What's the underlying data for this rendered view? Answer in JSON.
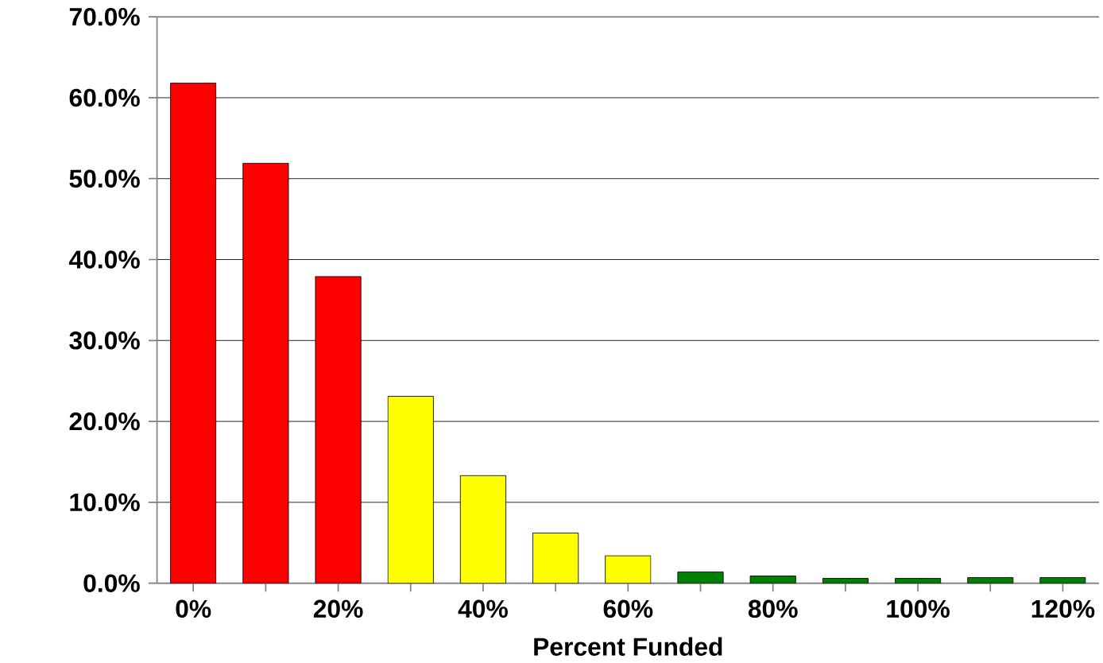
{
  "chart_data": {
    "type": "bar",
    "xlabel": "Percent Funded",
    "categories": [
      "0%",
      null,
      "20%",
      null,
      "40%",
      null,
      "60%",
      null,
      "80%",
      null,
      "100%",
      null,
      "120%"
    ],
    "values": [
      61.8,
      51.9,
      37.9,
      23.1,
      13.3,
      6.2,
      3.4,
      1.4,
      0.9,
      0.6,
      0.6,
      0.7,
      0.7
    ],
    "colors": [
      "#ff0000",
      "#ff0000",
      "#ff0000",
      "#ffff00",
      "#ffff00",
      "#ffff00",
      "#ffff00",
      "#008000",
      "#008000",
      "#008000",
      "#008000",
      "#008000",
      "#008000"
    ],
    "ylim": [
      0,
      70
    ],
    "yticks": [
      {
        "value": 0,
        "label": "0.0%"
      },
      {
        "value": 10,
        "label": "10.0%"
      },
      {
        "value": 20,
        "label": "20.0%"
      },
      {
        "value": 30,
        "label": "30.0%"
      },
      {
        "value": 40,
        "label": "40.0%"
      },
      {
        "value": 50,
        "label": "50.0%"
      },
      {
        "value": 60,
        "label": "60.0%"
      },
      {
        "value": 70,
        "label": "70.0%"
      }
    ],
    "grid": "y"
  }
}
